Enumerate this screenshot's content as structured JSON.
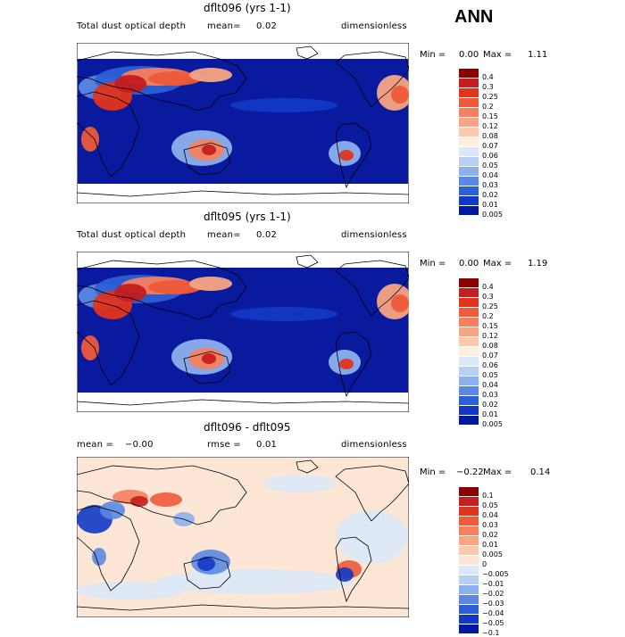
{
  "season": "ANN",
  "panels": [
    {
      "title": "dflt096 (yrs 1-1)",
      "left": "Total dust optical depth",
      "mid": "mean=",
      "mid_value": "0.02",
      "right": "dimensionless",
      "min_label": "Min =",
      "min": "0.00",
      "max_label": "Max =",
      "max": "1.11",
      "kind": "abs",
      "levels": [
        "0.4",
        "0.3",
        "0.25",
        "0.2",
        "0.15",
        "0.12",
        "0.08",
        "0.07",
        "0.06",
        "0.05",
        "0.04",
        "0.03",
        "0.02",
        "0.01",
        "0.005"
      ],
      "colors": [
        "#8b0000",
        "#c41e1e",
        "#e0341c",
        "#ee5a3a",
        "#f5805f",
        "#f9a584",
        "#fcc9ad",
        "#fdeedd",
        "#dce8f8",
        "#b6cff2",
        "#8cb0ec",
        "#5a88e2",
        "#2d5fd6",
        "#1238c4",
        "#001a9e"
      ]
    },
    {
      "title": "dflt095 (yrs 1-1)",
      "left": "Total dust optical depth",
      "mid": "mean=",
      "mid_value": "0.02",
      "right": "dimensionless",
      "min_label": "Min =",
      "min": "0.00",
      "max_label": "Max =",
      "max": "1.19",
      "kind": "abs",
      "levels": [
        "0.4",
        "0.3",
        "0.25",
        "0.2",
        "0.15",
        "0.12",
        "0.08",
        "0.07",
        "0.06",
        "0.05",
        "0.04",
        "0.03",
        "0.02",
        "0.01",
        "0.005"
      ],
      "colors": [
        "#8b0000",
        "#c41e1e",
        "#e0341c",
        "#ee5a3a",
        "#f5805f",
        "#f9a584",
        "#fcc9ad",
        "#fdeedd",
        "#dce8f8",
        "#b6cff2",
        "#8cb0ec",
        "#5a88e2",
        "#2d5fd6",
        "#1238c4",
        "#001a9e"
      ]
    },
    {
      "title": "dflt096 - dflt095",
      "left": "mean =",
      "left_value": "−0.00",
      "mid": "rmse =",
      "mid_value": "0.01",
      "right": "dimensionless",
      "min_label": "Min =",
      "min": "−0.22",
      "max_label": "Max =",
      "max": "0.14",
      "kind": "diff",
      "levels": [
        "0.1",
        "0.05",
        "0.04",
        "0.03",
        "0.02",
        "0.01",
        "0.005",
        "0",
        "−0.005",
        "−0.01",
        "−0.02",
        "−0.03",
        "−0.04",
        "−0.05",
        "−0.1"
      ],
      "colors": [
        "#8b0000",
        "#c41e1e",
        "#e0341c",
        "#ee5a3a",
        "#f5805f",
        "#f9a584",
        "#fcc9ad",
        "#fde6d6",
        "#dce8f8",
        "#b6cff2",
        "#8cb0ec",
        "#5a88e2",
        "#2d5fd6",
        "#1238c4",
        "#001a9e"
      ]
    }
  ],
  "colors": {
    "ocean_abs": "#0a1a9e",
    "land_line": "#000000",
    "diff_bg": "#fde6d6",
    "diff_blue": "#cfe0f6"
  }
}
